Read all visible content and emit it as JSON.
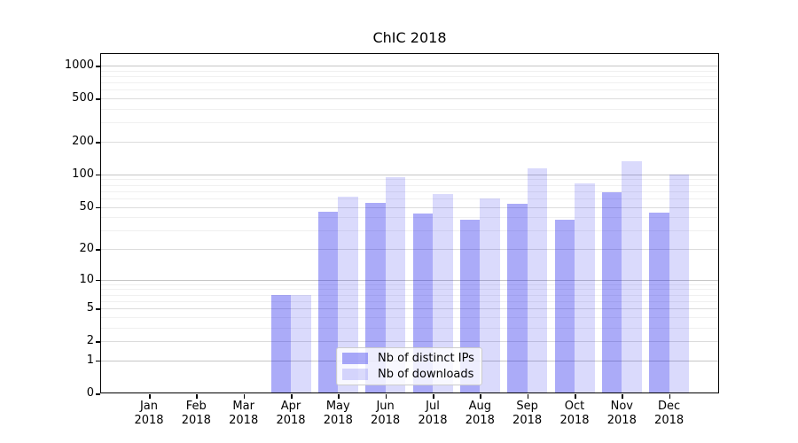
{
  "title": "ChIC 2018",
  "colors": {
    "bar_dark_hex": "#acacf8",
    "bar_dark_css": "rgba(10,10,235,0.34)",
    "bar_light_hex": "#dadafb",
    "bar_light_css": "rgba(10,10,235,0.15)",
    "grid_major": "#c6c6c6",
    "grid_mid": "#dcdcdc",
    "grid_minor": "#f0f0f0",
    "spine": "#000000",
    "legend_border": "#cccccc"
  },
  "chart_data": {
    "type": "bar",
    "title": "ChIC 2018",
    "categories": [
      "Jan 2018",
      "Feb 2018",
      "Mar 2018",
      "Apr 2018",
      "May 2018",
      "Jun 2018",
      "Jul 2018",
      "Aug 2018",
      "Sep 2018",
      "Oct 2018",
      "Nov 2018",
      "Dec 2018"
    ],
    "series": [
      {
        "name": "Nb of distinct IPs",
        "color": "#acacf8",
        "color_css": "rgba(10,10,235,0.34)",
        "values": [
          0,
          0,
          0,
          7,
          45,
          54,
          43,
          38,
          53,
          38,
          68,
          44
        ]
      },
      {
        "name": "Nb of downloads",
        "color": "#dadafb",
        "color_css": "rgba(10,10,235,0.15)",
        "values": [
          0,
          0,
          0,
          7,
          62,
          94,
          66,
          60,
          114,
          83,
          133,
          100
        ]
      }
    ],
    "xlabel": "",
    "ylabel": "",
    "yscale": "symlog (ln(1+y))",
    "yticks": [
      0,
      1,
      2,
      5,
      10,
      20,
      50,
      100,
      200,
      500,
      1000
    ],
    "ylim": [
      0,
      1280
    ],
    "grid": true,
    "legend_position": "inside lower center"
  }
}
